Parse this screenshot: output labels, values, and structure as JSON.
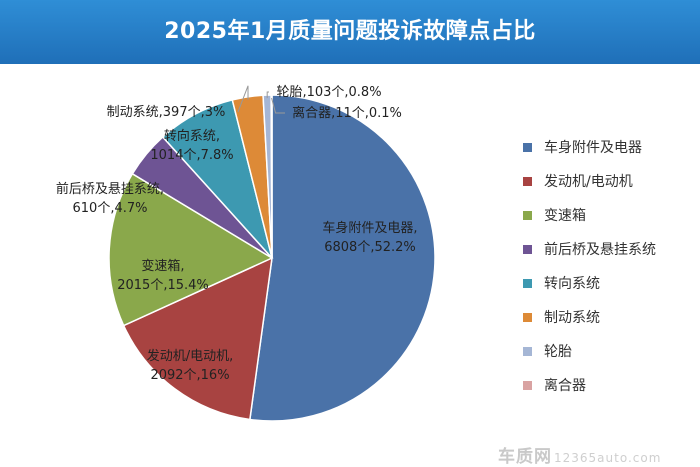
{
  "page": {
    "title": "2025年1月质量问题投诉故障点占比"
  },
  "chart_data": {
    "type": "pie",
    "title": "2025年1月质量问题投诉故障点占比",
    "slices": [
      {
        "name": "车身附件及电器",
        "count": 6808,
        "percent": 52.2,
        "label_line1": "车身附件及电器,",
        "label_line2": "6808个,52.2%",
        "color": "#4a72a8"
      },
      {
        "name": "发动机/电动机",
        "count": 2092,
        "percent": 16,
        "label_line1": "发动机/电动机,",
        "label_line2": "2092个,16%",
        "color": "#a84341"
      },
      {
        "name": "变速箱",
        "count": 2015,
        "percent": 15.4,
        "label_line1": "变速箱,",
        "label_line2": "2015个,15.4%",
        "color": "#8aa84b"
      },
      {
        "name": "前后桥及悬挂系统",
        "count": 610,
        "percent": 4.7,
        "label_line1": "前后桥及悬挂系统,",
        "label_line2": "610个,4.7%",
        "color": "#6e5494"
      },
      {
        "name": "转向系统",
        "count": 1014,
        "percent": 7.8,
        "label_line1": "转向系统,",
        "label_line2": "1014个,7.8%",
        "color": "#3d99b1"
      },
      {
        "name": "制动系统",
        "count": 397,
        "percent": 3,
        "label_line1": "制动系统,397个,3%",
        "label_line2": "",
        "color": "#dd8a37"
      },
      {
        "name": "轮胎",
        "count": 103,
        "percent": 0.8,
        "label_line1": "轮胎,103个,0.8%",
        "label_line2": "",
        "color": "#a5b6d5"
      },
      {
        "name": "离合器",
        "count": 11,
        "percent": 0.1,
        "label_line1": "离合器,11个,0.1%",
        "label_line2": "",
        "color": "#d9a3a2"
      }
    ],
    "legend_position": "right",
    "start_angle": "12 o'clock",
    "direction": "clockwise"
  },
  "watermark": {
    "text": "车质网",
    "url": "12365auto.com"
  }
}
